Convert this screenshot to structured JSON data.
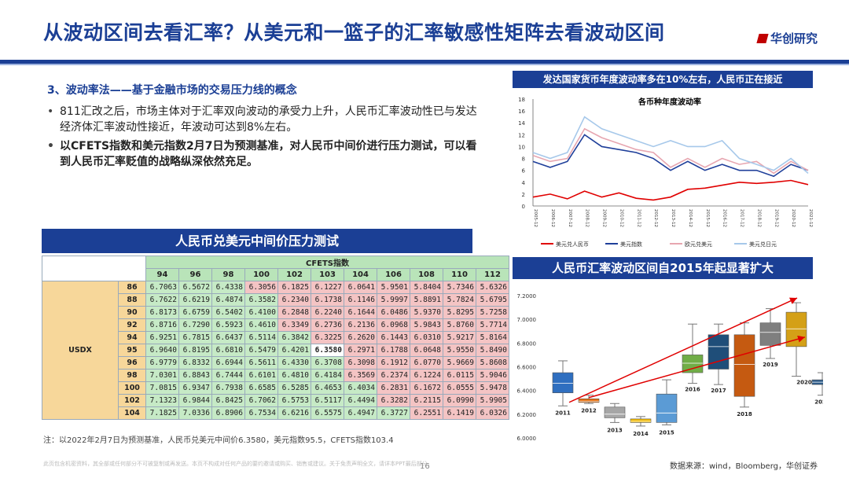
{
  "header": {
    "title": "从波动区间去看汇率？从美元和一篮子的汇率敏感性矩阵去看波动区间",
    "logo": "华创研究"
  },
  "left": {
    "subhead": "3、波动率法——基于金融市场的交易压力线的概念",
    "bullet1": "811汇改之后，市场主体对于汇率双向波动的承受力上升，人民币汇率波动性已与发达经济体汇率波动性接近，年波动可达到8%左右。",
    "bullet2": "以CFETS指数和美元指数2月7日为预测基准，对人民币中间价进行压力测试，可以看到人民币汇率贬值的战略纵深依然充足。"
  },
  "matrix": {
    "title": "人民币兑美元中间价压力测试",
    "col_group": "CFETS指数",
    "row_group": "USDX",
    "cols": [
      "94",
      "96",
      "98",
      "100",
      "102",
      "103",
      "104",
      "106",
      "108",
      "110",
      "112"
    ],
    "rows": [
      {
        "k": "86",
        "v": [
          "6.7063",
          "6.5672",
          "6.4338",
          "6.3056",
          "6.1825",
          "6.1227",
          "6.0641",
          "5.9501",
          "5.8404",
          "5.7346",
          "5.6326"
        ]
      },
      {
        "k": "88",
        "v": [
          "6.7622",
          "6.6219",
          "6.4874",
          "6.3582",
          "6.2340",
          "6.1738",
          "6.1146",
          "5.9997",
          "5.8891",
          "5.7824",
          "5.6795"
        ]
      },
      {
        "k": "90",
        "v": [
          "6.8173",
          "6.6759",
          "6.5402",
          "6.4100",
          "6.2848",
          "6.2240",
          "6.1644",
          "6.0486",
          "5.9370",
          "5.8295",
          "5.7258"
        ]
      },
      {
        "k": "92",
        "v": [
          "6.8716",
          "6.7290",
          "6.5923",
          "6.4610",
          "6.3349",
          "6.2736",
          "6.2136",
          "6.0968",
          "5.9843",
          "5.8760",
          "5.7714"
        ]
      },
      {
        "k": "94",
        "v": [
          "6.9251",
          "6.7815",
          "6.6437",
          "6.5114",
          "6.3842",
          "6.3225",
          "6.2620",
          "6.1443",
          "6.0310",
          "5.9217",
          "5.8164"
        ]
      },
      {
        "k": "95",
        "v": [
          "6.9640",
          "6.8195",
          "6.6810",
          "6.5479",
          "6.4201",
          "6.3580",
          "6.2971",
          "6.1788",
          "6.0648",
          "5.9550",
          "5.8490"
        ]
      },
      {
        "k": "96",
        "v": [
          "6.9779",
          "6.8332",
          "6.6944",
          "6.5611",
          "6.4330",
          "6.3708",
          "6.3098",
          "6.1912",
          "6.0770",
          "5.9669",
          "5.8608"
        ]
      },
      {
        "k": "98",
        "v": [
          "7.0301",
          "6.8843",
          "6.7444",
          "6.6101",
          "6.4810",
          "6.4184",
          "6.3569",
          "6.2374",
          "6.1224",
          "6.0115",
          "5.9046"
        ]
      },
      {
        "k": "100",
        "v": [
          "7.0815",
          "6.9347",
          "6.7938",
          "6.6585",
          "6.5285",
          "6.4653",
          "6.4034",
          "6.2831",
          "6.1672",
          "6.0555",
          "5.9478"
        ]
      },
      {
        "k": "102",
        "v": [
          "7.1323",
          "6.9844",
          "6.8425",
          "6.7062",
          "6.5753",
          "6.5117",
          "6.4494",
          "6.3282",
          "6.2115",
          "6.0990",
          "5.9905"
        ]
      },
      {
        "k": "104",
        "v": [
          "7.1825",
          "7.0336",
          "6.8906",
          "6.7534",
          "6.6216",
          "6.5575",
          "6.4947",
          "6.3727",
          "6.2551",
          "6.1419",
          "6.0326"
        ]
      }
    ],
    "note": "注：以2022年2月7日为预测基准，人民币兑美元中间价6.3580，美元指数95.5，CFETS指数103.4"
  },
  "chart_data": [
    {
      "type": "line",
      "header": "发达国家货币年度波动率多在10%左右，人民币正在接近",
      "title": "各币种年度波动率",
      "ylim": [
        0,
        18
      ],
      "yticks": [
        "0",
        "2",
        "4",
        "6",
        "8",
        "10",
        "12",
        "14",
        "16",
        "18"
      ],
      "x": [
        "2005-12",
        "2006-12",
        "2007-12",
        "2008-12",
        "2009-12",
        "2010-12",
        "2011-12",
        "2012-12",
        "2013-12",
        "2014-12",
        "2015-12",
        "2016-12",
        "2017-12",
        "2018-12",
        "2019-12",
        "2020-12",
        "2021-12"
      ],
      "series": [
        {
          "name": "美元兑人民币",
          "color": "#e00000",
          "values": [
            1.5,
            2,
            1.2,
            2.5,
            1.5,
            2.2,
            1.3,
            1,
            1.5,
            2.8,
            3,
            3.5,
            4,
            3.8,
            4,
            4.3,
            3.6
          ]
        },
        {
          "name": "美元指数",
          "color": "#1f3f9a",
          "values": [
            7.5,
            6.5,
            7.5,
            12,
            10,
            9.5,
            9,
            8,
            6,
            7.5,
            6,
            7,
            6,
            6,
            5,
            7,
            6
          ]
        },
        {
          "name": "欧元兑美元",
          "color": "#e7a6b0",
          "values": [
            8.5,
            7.5,
            8,
            13,
            11.5,
            10.5,
            9.5,
            9,
            6.5,
            8,
            6.5,
            8,
            7,
            7.5,
            5.5,
            7.5,
            6
          ]
        },
        {
          "name": "美元兑日元",
          "color": "#a6c8ea",
          "values": [
            9,
            8,
            9,
            15,
            13,
            12,
            11,
            10,
            11,
            10,
            10,
            11,
            8,
            7,
            6,
            8,
            5.5
          ]
        }
      ]
    },
    {
      "type": "box",
      "header": "人民币汇率波动区间自2015年起显著扩大",
      "ylim": [
        6.0,
        7.2
      ],
      "yticks": [
        "6.0000",
        "6.2000",
        "6.4000",
        "6.6000",
        "6.8000",
        "7.0000",
        "7.2000"
      ],
      "categories": [
        "2011",
        "2012",
        "2013",
        "2014",
        "2015",
        "2016",
        "2017",
        "2018",
        "2019",
        "2020",
        "2021"
      ],
      "boxes": [
        {
          "lo": 6.27,
          "q1": 6.38,
          "med": 6.46,
          "q3": 6.55,
          "hi": 6.65,
          "color": "#2f6fc0"
        },
        {
          "lo": 6.29,
          "q1": 6.3,
          "med": 6.31,
          "q3": 6.33,
          "hi": 6.36,
          "color": "#e46c0a"
        },
        {
          "lo": 6.13,
          "q1": 6.17,
          "med": 6.2,
          "q3": 6.26,
          "hi": 6.29,
          "color": "#a6a6a6"
        },
        {
          "lo": 6.1,
          "q1": 6.13,
          "med": 6.14,
          "q3": 6.16,
          "hi": 6.18,
          "color": "#f0b800"
        },
        {
          "lo": 6.11,
          "q1": 6.13,
          "med": 6.21,
          "q3": 6.37,
          "hi": 6.49,
          "color": "#5b9bd5"
        },
        {
          "lo": 6.46,
          "q1": 6.55,
          "med": 6.63,
          "q3": 6.7,
          "hi": 6.96,
          "color": "#70ad47"
        },
        {
          "lo": 6.45,
          "q1": 6.58,
          "med": 6.77,
          "q3": 6.87,
          "hi": 6.96,
          "color": "#1f4e79"
        },
        {
          "lo": 6.26,
          "q1": 6.35,
          "med": 6.62,
          "q3": 6.87,
          "hi": 6.97,
          "color": "#c55a11"
        },
        {
          "lo": 6.67,
          "q1": 6.78,
          "med": 6.89,
          "q3": 6.97,
          "hi": 7.09,
          "color": "#7f7f7f"
        },
        {
          "lo": 6.52,
          "q1": 6.77,
          "med": 6.92,
          "q3": 7.06,
          "hi": 7.14,
          "color": "#d4a017"
        },
        {
          "lo": 6.36,
          "q1": 6.45,
          "med": 6.47,
          "q3": 6.49,
          "hi": 6.55,
          "color": "#2e5c8a"
        }
      ]
    }
  ],
  "footer": {
    "disclaimer": "此页包含机密资料，其全部或任何部分不可被复制或再发送。本页不构成对任何产品的要约邀请或购买、销售或建议。关于免责声明全文，请详本PPT最后部分。",
    "page": "16",
    "source": "数据来源：wind，Bloomberg，华创证券"
  }
}
